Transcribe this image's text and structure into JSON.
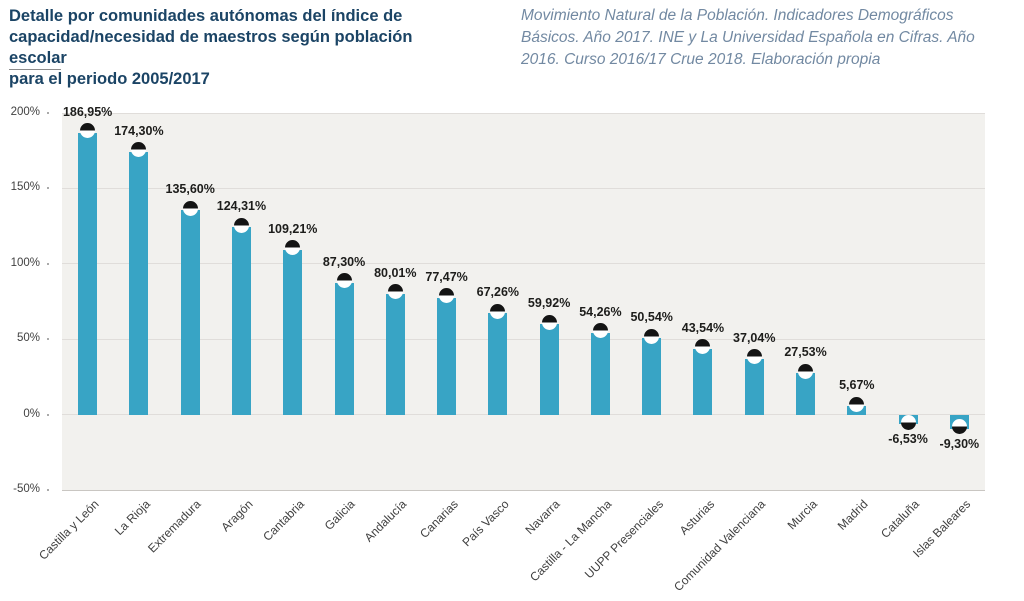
{
  "header": {
    "title_lines": [
      "Detalle por comunidades autónomas del índice de",
      "capacidad/necesidad de maestros según población escolar",
      "para el periodo 2005/2017"
    ],
    "source_lines": [
      "Movimiento Natural de la Población. Indicadores Demográficos",
      "Básicos. Año 2017. INE y La Universidad Española en Cifras. Año",
      "2016. Curso 2016/17 Crue 2018. Elaboración propia"
    ]
  },
  "chart_data": {
    "type": "bar",
    "title": "Detalle por comunidades autónomas del índice de capacidad/necesidad de maestros según población escolar para el periodo 2005/2017",
    "source": "Movimiento Natural de la Población. Indicadores Demográficos Básicos. Año 2017. INE y La Universidad Española en Cifras. Año 2016. Curso 2016/17 Crue 2018. Elaboración propia",
    "categories": [
      "Castilla y León",
      "La Rioja",
      "Extremadura",
      "Aragón",
      "Cantabria",
      "Galicia",
      "Andalucía",
      "Canarias",
      "País Vasco",
      "Navarra",
      "Castilla - La Mancha",
      "UUPP Presenciales",
      "Asturias",
      "Comunidad Valenciana",
      "Murcia",
      "Madrid",
      "Cataluña",
      "Islas Baleares"
    ],
    "values": [
      186.95,
      174.3,
      135.6,
      124.31,
      109.21,
      87.3,
      80.01,
      77.47,
      67.26,
      59.92,
      54.26,
      50.54,
      43.54,
      37.04,
      27.53,
      5.67,
      -6.53,
      -9.3
    ],
    "value_labels": [
      "186,95%",
      "174,30%",
      "135,60%",
      "124,31%",
      "109,21%",
      "87,30%",
      "80,01%",
      "77,47%",
      "67,26%",
      "59,92%",
      "54,26%",
      "50,54%",
      "43,54%",
      "37,04%",
      "27,53%",
      "5,67%",
      "-6,53%",
      "-9,30%"
    ],
    "y_ticks": [
      {
        "value": 200,
        "label": "200%"
      },
      {
        "value": 150,
        "label": "150%"
      },
      {
        "value": 100,
        "label": "100%"
      },
      {
        "value": 50,
        "label": "50%"
      },
      {
        "value": 0,
        "label": "0%"
      },
      {
        "value": -50,
        "label": "-50%"
      }
    ],
    "ylim": [
      -50,
      200
    ],
    "xlabel": "",
    "ylabel": "",
    "grid": true,
    "legend": "none",
    "marker": "half-filled-circle",
    "colors": {
      "bar": "#38a4c5",
      "plot_background": "#f2f1ee",
      "gridline": "#e0ddda",
      "axis_line": "#c9c6c2",
      "title": "#1b4465",
      "source_text": "#7289a2",
      "value_label": "#1d1d1b",
      "marker_dark": "#141414",
      "marker_light": "#ffffff"
    }
  }
}
